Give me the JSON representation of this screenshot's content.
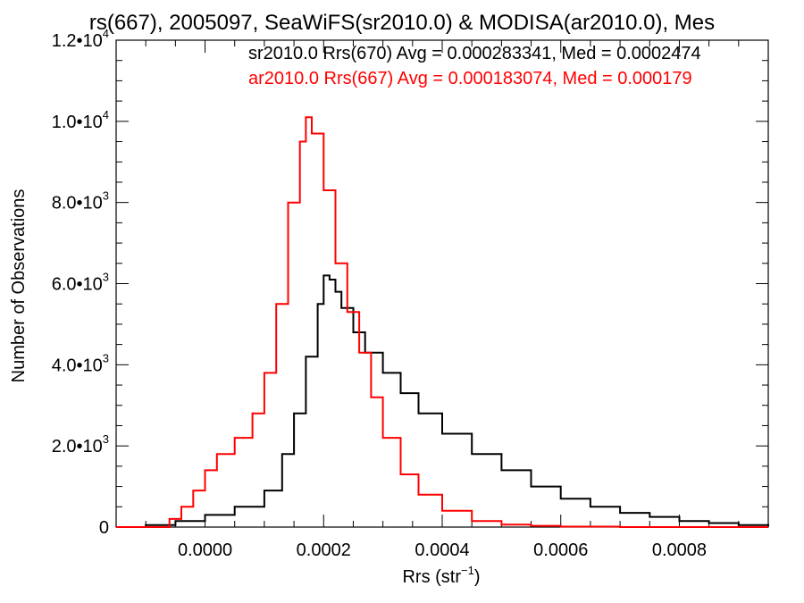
{
  "chart_data": {
    "type": "line",
    "title": "rs(667), 2005097, SeaWiFS(sr2010.0) & MODISA(ar2010.0), Mes",
    "xlabel_main": "Rrs (str",
    "xlabel_sup": "−1",
    "xlabel_close": ")",
    "ylabel": "Number of Observations",
    "xlim": [
      -0.00015,
      0.00095
    ],
    "ylim": [
      0,
      12000
    ],
    "x_ticks": [
      {
        "value": 0.0,
        "label": "0.0000"
      },
      {
        "value": 0.0002,
        "label": "0.0002"
      },
      {
        "value": 0.0004,
        "label": "0.0004"
      },
      {
        "value": 0.0006,
        "label": "0.0006"
      },
      {
        "value": 0.0008,
        "label": "0.0008"
      }
    ],
    "y_ticks": [
      {
        "value": 0,
        "mant": "0",
        "exp": ""
      },
      {
        "value": 2000,
        "mant": "2.0•10",
        "exp": "3"
      },
      {
        "value": 4000,
        "mant": "4.0•10",
        "exp": "3"
      },
      {
        "value": 6000,
        "mant": "6.0•10",
        "exp": "3"
      },
      {
        "value": 8000,
        "mant": "8.0•10",
        "exp": "3"
      },
      {
        "value": 10000,
        "mant": "1.0•10",
        "exp": "4"
      },
      {
        "value": 12000,
        "mant": "1.2•10",
        "exp": "4"
      }
    ],
    "annotations": [
      "sr2010.0 Rrs(670) Avg = 0.000283341, Med = 0.0002474",
      "ar2010.0 Rrs(667) Avg = 0.000183074, Med = 0.000179"
    ],
    "series": [
      {
        "name": "sr2010.0",
        "color": "#000000",
        "x": [
          -0.00015,
          -0.0001,
          -5e-05,
          0.0,
          5e-05,
          0.0001,
          0.00013,
          0.00015,
          0.00017,
          0.00019,
          0.0002,
          0.00021,
          0.00022,
          0.00023,
          0.00025,
          0.00027,
          0.0003,
          0.00033,
          0.00036,
          0.0004,
          0.00045,
          0.0005,
          0.00055,
          0.0006,
          0.00065,
          0.0007,
          0.00075,
          0.0008,
          0.00085,
          0.0009,
          0.00095
        ],
        "y": [
          0,
          50,
          150,
          300,
          500,
          900,
          1800,
          2800,
          4200,
          5500,
          6200,
          6100,
          5800,
          5400,
          4800,
          4300,
          3800,
          3300,
          2800,
          2300,
          1800,
          1400,
          1000,
          700,
          500,
          350,
          250,
          150,
          100,
          50,
          20
        ]
      },
      {
        "name": "ar2010.0",
        "color": "#ff0000",
        "x": [
          -0.00015,
          -8e-05,
          -6e-05,
          -4e-05,
          -2e-05,
          0.0,
          2e-05,
          5e-05,
          8e-05,
          0.0001,
          0.00012,
          0.00014,
          0.00016,
          0.00017,
          0.00018,
          0.0002,
          0.00022,
          0.00024,
          0.00026,
          0.00028,
          0.0003,
          0.00033,
          0.00036,
          0.0004,
          0.00045,
          0.0005,
          0.00055,
          0.0006,
          0.0007,
          0.0008,
          0.00095
        ],
        "y": [
          0,
          0,
          200,
          500,
          900,
          1400,
          1800,
          2200,
          2800,
          3800,
          5500,
          8000,
          9500,
          10100,
          9700,
          8300,
          6500,
          5300,
          4300,
          3200,
          2200,
          1300,
          800,
          400,
          150,
          60,
          30,
          10,
          0,
          0,
          0
        ]
      }
    ]
  }
}
